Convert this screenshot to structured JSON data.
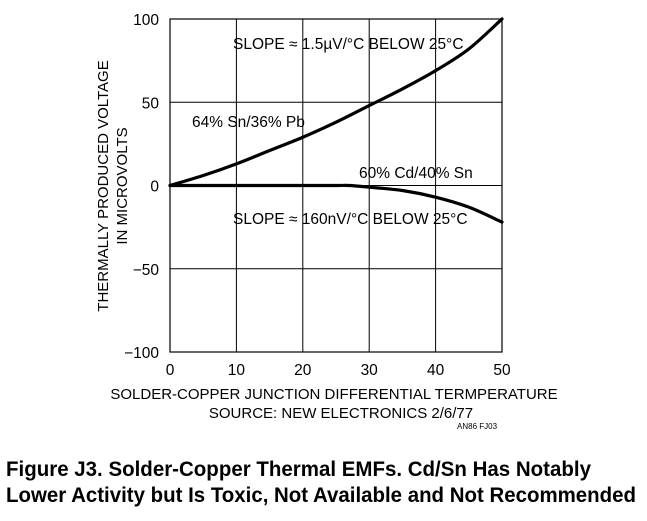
{
  "chart_data": {
    "type": "line",
    "xlim": [
      0,
      50
    ],
    "ylim": [
      -100,
      100
    ],
    "x_ticks": [
      0,
      10,
      20,
      30,
      40,
      50
    ],
    "y_ticks": [
      100,
      50,
      0,
      -50,
      -100
    ],
    "x_tick_labels": [
      "0",
      "10",
      "20",
      "30",
      "40",
      "50"
    ],
    "y_tick_labels": [
      "100",
      "50",
      "0",
      "−50",
      "−100"
    ],
    "grid": true,
    "xlabel": "SOLDER-COPPER JUNCTION DIFFERENTIAL TERMPERATURE",
    "source": "SOURCE: NEW ELECTRONICS 2/6/77",
    "ylabel_line1": "THERMALLY PRODUCED VOLTAGE",
    "ylabel_line2": "IN MICROVOLTS",
    "series": [
      {
        "name": "64% Sn/36% Pb",
        "x": [
          0,
          5,
          10,
          15,
          20,
          25,
          30,
          35,
          40,
          45,
          50
        ],
        "y": [
          0,
          6,
          13,
          21,
          29,
          38,
          48,
          58,
          69,
          82,
          100
        ]
      },
      {
        "name": "60% Cd/40% Sn",
        "x": [
          0,
          5,
          10,
          15,
          20,
          25,
          27,
          30,
          35,
          40,
          45,
          50
        ],
        "y": [
          0,
          0,
          0,
          0,
          0,
          0,
          0,
          -1,
          -3,
          -7,
          -13,
          -22
        ]
      }
    ],
    "annotations": {
      "slope_top": "SLOPE ≈ 1.5µV/°C BELOW 25°C",
      "slope_bottom": "SLOPE ≈ 160nV/°C BELOW 25°C"
    },
    "ref_code": "AN86 FJ03"
  },
  "caption": {
    "line1": "Figure J3. Solder-Copper Thermal EMFs. Cd/Sn Has Notably",
    "line2": "Lower Activity but Is Toxic, Not Available and Not Recommended"
  }
}
